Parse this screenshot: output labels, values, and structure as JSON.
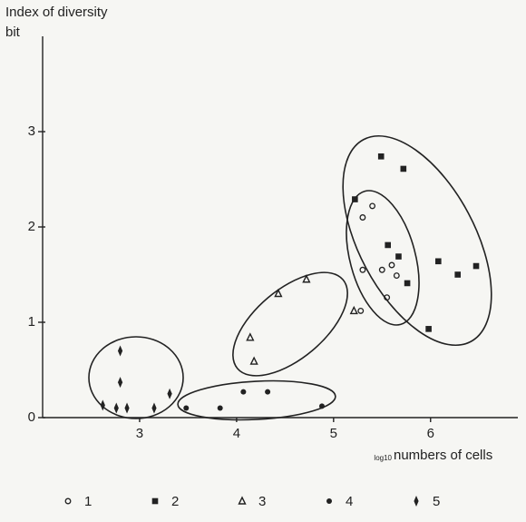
{
  "chart_data": {
    "type": "scatter",
    "y_label": "Index of diversity",
    "y_unit": "bit",
    "x_label_unit": "log10",
    "x_label": "numbers of cells",
    "xlim": [
      2,
      6.9
    ],
    "xticks": [
      3,
      4,
      5,
      6
    ],
    "ylim": [
      0,
      4
    ],
    "yticks": [
      0,
      1,
      2,
      3
    ],
    "series": [
      {
        "name": "1",
        "color": "#222222",
        "marker": "circle-open",
        "x": [
          5.3,
          5.4,
          5.3,
          5.5,
          5.6,
          5.65,
          5.55,
          5.28
        ],
        "values": [
          2.1,
          2.22,
          1.55,
          1.55,
          1.6,
          1.49,
          1.26,
          1.12
        ]
      },
      {
        "name": "2",
        "color": "#222222",
        "marker": "square",
        "x": [
          5.49,
          5.72,
          5.22,
          5.56,
          5.67,
          5.76,
          6.08,
          6.28,
          6.47,
          5.98
        ],
        "values": [
          2.74,
          2.61,
          2.29,
          1.81,
          1.69,
          1.41,
          1.64,
          1.5,
          1.59,
          0.93
        ]
      },
      {
        "name": "3",
        "color": "#222222",
        "marker": "triangle",
        "x": [
          5.21,
          4.14,
          4.18,
          4.43,
          4.72
        ],
        "values": [
          1.12,
          0.84,
          0.59,
          1.3,
          1.45
        ]
      },
      {
        "name": "4",
        "color": "#222222",
        "marker": "dot",
        "x": [
          3.48,
          3.83,
          4.07,
          4.32,
          4.88
        ],
        "values": [
          0.1,
          0.1,
          0.27,
          0.27,
          0.12
        ]
      },
      {
        "name": "5",
        "color": "#222222",
        "marker": "diamond",
        "x": [
          2.8,
          2.8,
          2.62,
          2.76,
          2.87,
          3.15,
          3.31
        ],
        "values": [
          0.7,
          0.37,
          0.13,
          0.1,
          0.1,
          0.1,
          0.25
        ]
      }
    ]
  }
}
